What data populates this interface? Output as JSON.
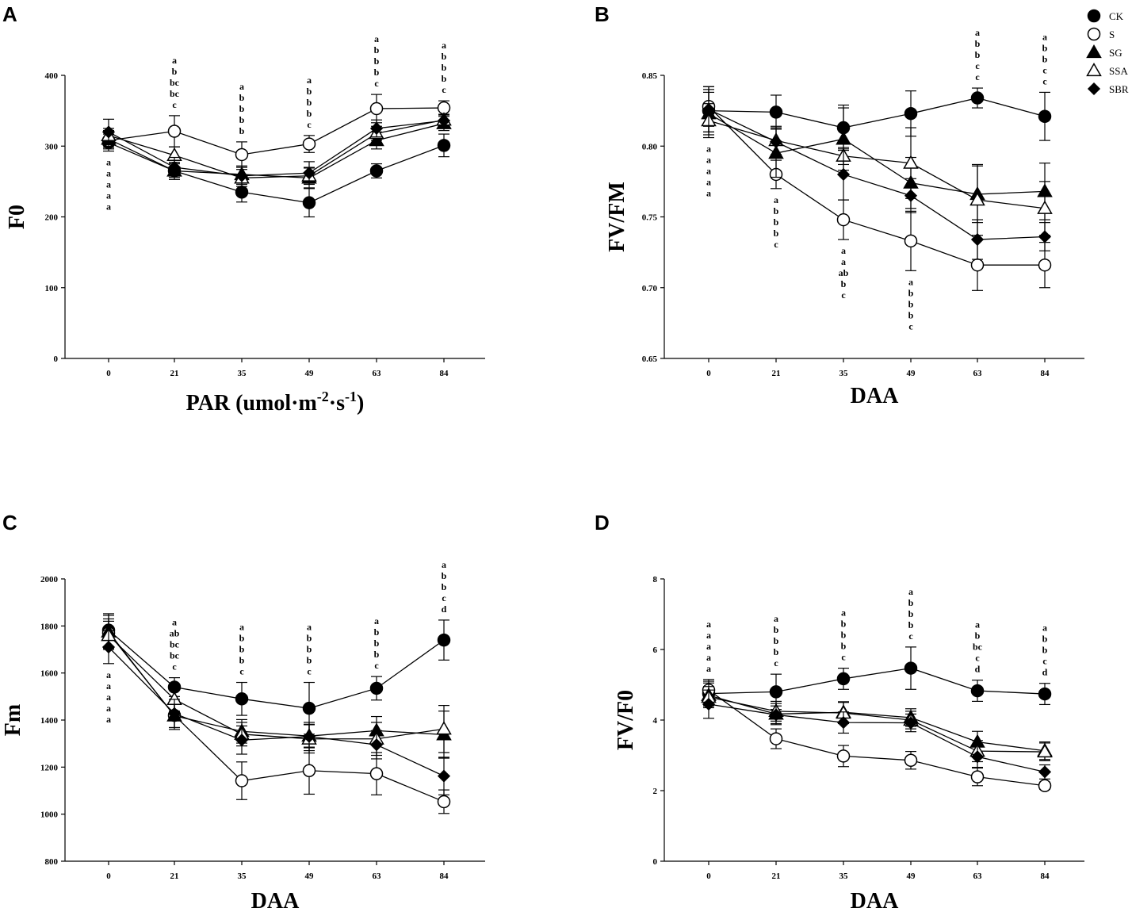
{
  "legend": [
    {
      "name": "CK",
      "marker": "filled-circle"
    },
    {
      "name": "S",
      "marker": "open-circle"
    },
    {
      "name": "SG",
      "marker": "filled-triangle"
    },
    {
      "name": "SSA",
      "marker": "open-triangle"
    },
    {
      "name": "SBR",
      "marker": "filled-diamond"
    }
  ],
  "colors": {
    "ink": "#000000",
    "background": "#ffffff"
  },
  "chart_data": [
    {
      "panel": "A",
      "type": "line",
      "title": "",
      "x": [
        "0",
        "21",
        "35",
        "49",
        "63",
        "84"
      ],
      "xlabel": "PAR (umol·m-2·s-1)",
      "xlabel_parts": {
        "main": "PAR (umol·m",
        "sup1": "-2",
        "mid": "·s",
        "sup2": "-1",
        "end": ")"
      },
      "ylabel": "F0",
      "ylim": [
        0,
        400
      ],
      "yticks": [
        "0",
        "100",
        "200",
        "300",
        "400"
      ],
      "series": [
        {
          "name": "CK",
          "values": [
            305,
            265,
            235,
            220,
            265,
            301
          ],
          "errors": [
            12,
            12,
            14,
            20,
            10,
            16
          ]
        },
        {
          "name": "S",
          "values": [
            308,
            321,
            288,
            303,
            353,
            354
          ],
          "errors": [
            12,
            22,
            18,
            12,
            20,
            10
          ]
        },
        {
          "name": "SG",
          "values": [
            310,
            265,
            260,
            255,
            308,
            332
          ],
          "errors": [
            12,
            12,
            12,
            14,
            12,
            10
          ]
        },
        {
          "name": "SSA",
          "values": [
            315,
            287,
            255,
            258,
            318,
            337
          ],
          "errors": [
            10,
            12,
            12,
            12,
            10,
            8
          ]
        },
        {
          "name": "SBR",
          "values": [
            320,
            270,
            258,
            262,
            325,
            336
          ],
          "errors": [
            18,
            14,
            12,
            16,
            12,
            8
          ]
        }
      ],
      "significance": [
        {
          "x": "0",
          "position": "below",
          "letters": [
            "a",
            "a",
            "a",
            "a",
            "a"
          ]
        },
        {
          "x": "21",
          "position": "above",
          "letters": [
            "a",
            "b",
            "bc",
            "bc",
            "c"
          ]
        },
        {
          "x": "35",
          "position": "above",
          "letters": [
            "a",
            "b",
            "b",
            "b",
            "b"
          ]
        },
        {
          "x": "49",
          "position": "above",
          "letters": [
            "a",
            "b",
            "b",
            "b",
            "c"
          ]
        },
        {
          "x": "63",
          "position": "above",
          "letters": [
            "a",
            "b",
            "b",
            "b",
            "c"
          ]
        },
        {
          "x": "84",
          "position": "above",
          "letters": [
            "a",
            "b",
            "b",
            "b",
            "c"
          ]
        }
      ]
    },
    {
      "panel": "B",
      "type": "line",
      "title": "",
      "x": [
        "0",
        "21",
        "35",
        "49",
        "63",
        "84"
      ],
      "xlabel": "DAA",
      "ylabel": "FV/FM",
      "ylim": [
        0.65,
        0.85
      ],
      "yticks": [
        "0.65",
        "0.70",
        "0.75",
        "0.80",
        "0.85"
      ],
      "series": [
        {
          "name": "CK",
          "values": [
            0.825,
            0.824,
            0.813,
            0.823,
            0.834,
            0.821
          ],
          "errors": [
            0.015,
            0.012,
            0.016,
            0.016,
            0.007,
            0.017
          ]
        },
        {
          "name": "S",
          "values": [
            0.828,
            0.78,
            0.748,
            0.733,
            0.716,
            0.716
          ],
          "errors": [
            0.014,
            0.01,
            0.014,
            0.021,
            0.018,
            0.016
          ]
        },
        {
          "name": "SG",
          "values": [
            0.823,
            0.795,
            0.805,
            0.774,
            0.766,
            0.768
          ],
          "errors": [
            0.015,
            0.017,
            0.022,
            0.018,
            0.02,
            0.02
          ]
        },
        {
          "name": "SSA",
          "values": [
            0.818,
            0.804,
            0.793,
            0.788,
            0.762,
            0.756
          ],
          "errors": [
            0.012,
            0.01,
            0.006,
            0.025,
            0.025,
            0.019
          ]
        },
        {
          "name": "SBR",
          "values": [
            0.826,
            0.803,
            0.78,
            0.765,
            0.734,
            0.736
          ],
          "errors": [
            0.016,
            0.01,
            0.018,
            0.012,
            0.014,
            0.01
          ]
        }
      ],
      "significance": [
        {
          "x": "0",
          "position": "below",
          "letters": [
            "a",
            "a",
            "a",
            "a",
            "a"
          ]
        },
        {
          "x": "21",
          "position": "below",
          "letters": [
            "a",
            "b",
            "b",
            "b",
            "c"
          ]
        },
        {
          "x": "35",
          "position": "below",
          "letters": [
            "a",
            "a",
            "ab",
            "b",
            "c"
          ]
        },
        {
          "x": "49",
          "position": "below",
          "letters": [
            "a",
            "b",
            "b",
            "b",
            "c"
          ]
        },
        {
          "x": "63",
          "position": "above",
          "letters": [
            "a",
            "b",
            "b",
            "c",
            "c"
          ]
        },
        {
          "x": "84",
          "position": "above",
          "letters": [
            "a",
            "b",
            "b",
            "c",
            "c"
          ]
        }
      ]
    },
    {
      "panel": "C",
      "type": "line",
      "title": "",
      "x": [
        "0",
        "21",
        "35",
        "49",
        "63",
        "84"
      ],
      "xlabel": "DAA",
      "ylabel": "Fm",
      "ylim": [
        800,
        2000
      ],
      "yticks": [
        "800",
        "1000",
        "1200",
        "1400",
        "1600",
        "1800",
        "2000"
      ],
      "series": [
        {
          "name": "CK",
          "values": [
            1782,
            1540,
            1490,
            1450,
            1535,
            1740
          ],
          "errors": [
            70,
            40,
            70,
            110,
            50,
            85
          ]
        },
        {
          "name": "S",
          "values": [
            1770,
            1420,
            1142,
            1185,
            1172,
            1053
          ],
          "errors": [
            60,
            60,
            80,
            100,
            90,
            50
          ]
        },
        {
          "name": "SG",
          "values": [
            1775,
            1418,
            1352,
            1332,
            1355,
            1338
          ],
          "errors": [
            70,
            50,
            50,
            50,
            60,
            100
          ]
        },
        {
          "name": "SSA",
          "values": [
            1760,
            1488,
            1340,
            1320,
            1320,
            1362
          ],
          "errors": [
            60,
            50,
            50,
            60,
            70,
            100
          ]
        },
        {
          "name": "SBR",
          "values": [
            1710,
            1428,
            1315,
            1330,
            1295,
            1162
          ],
          "errors": [
            70,
            60,
            60,
            60,
            60,
            80
          ]
        }
      ],
      "significance": [
        {
          "x": "0",
          "position": "below",
          "letters": [
            "a",
            "a",
            "a",
            "a",
            "a"
          ]
        },
        {
          "x": "21",
          "position": "above",
          "letters": [
            "a",
            "ab",
            "bc",
            "bc",
            "c"
          ]
        },
        {
          "x": "35",
          "position": "above",
          "letters": [
            "a",
            "b",
            "b",
            "b",
            "c"
          ]
        },
        {
          "x": "49",
          "position": "above",
          "letters": [
            "a",
            "b",
            "b",
            "b",
            "c"
          ]
        },
        {
          "x": "63",
          "position": "above",
          "letters": [
            "a",
            "b",
            "b",
            "b",
            "c"
          ]
        },
        {
          "x": "84",
          "position": "above",
          "letters": [
            "a",
            "b",
            "b",
            "c",
            "d"
          ]
        }
      ]
    },
    {
      "panel": "D",
      "type": "line",
      "title": "",
      "x": [
        "0",
        "21",
        "35",
        "49",
        "63",
        "84"
      ],
      "xlabel": "DAA",
      "ylabel": "FV/F0",
      "ylim": [
        0,
        8
      ],
      "yticks": [
        "0",
        "2",
        "4",
        "6",
        "8"
      ],
      "series": [
        {
          "name": "CK",
          "values": [
            4.75,
            4.8,
            5.17,
            5.47,
            4.83,
            4.74
          ],
          "errors": [
            0.35,
            0.5,
            0.3,
            0.6,
            0.3,
            0.3
          ]
        },
        {
          "name": "S",
          "values": [
            4.85,
            3.47,
            2.98,
            2.86,
            2.39,
            2.14
          ],
          "errors": [
            0.3,
            0.28,
            0.3,
            0.25,
            0.25,
            0.1
          ]
        },
        {
          "name": "SG",
          "values": [
            4.7,
            4.17,
            4.22,
            4.07,
            3.38,
            3.13
          ],
          "errors": [
            0.35,
            0.3,
            0.3,
            0.25,
            0.3,
            0.25
          ]
        },
        {
          "name": "SSA",
          "values": [
            4.65,
            4.25,
            4.2,
            4.0,
            3.12,
            3.1
          ],
          "errors": [
            0.3,
            0.28,
            0.3,
            0.25,
            0.3,
            0.25
          ]
        },
        {
          "name": "SBR",
          "values": [
            4.45,
            4.15,
            3.93,
            3.92,
            2.96,
            2.53
          ],
          "errors": [
            0.4,
            0.25,
            0.3,
            0.25,
            0.3,
            0.2
          ]
        }
      ],
      "significance": [
        {
          "x": "0",
          "position": "above",
          "letters": [
            "a",
            "a",
            "a",
            "a",
            "a"
          ]
        },
        {
          "x": "21",
          "position": "above",
          "letters": [
            "a",
            "b",
            "b",
            "b",
            "c"
          ]
        },
        {
          "x": "35",
          "position": "above",
          "letters": [
            "a",
            "b",
            "b",
            "b",
            "c"
          ]
        },
        {
          "x": "49",
          "position": "above",
          "letters": [
            "a",
            "b",
            "b",
            "b",
            "c"
          ]
        },
        {
          "x": "63",
          "position": "above",
          "letters": [
            "a",
            "b",
            "bc",
            "c",
            "d"
          ]
        },
        {
          "x": "84",
          "position": "above",
          "letters": [
            "a",
            "b",
            "b",
            "c",
            "d"
          ]
        }
      ]
    }
  ]
}
